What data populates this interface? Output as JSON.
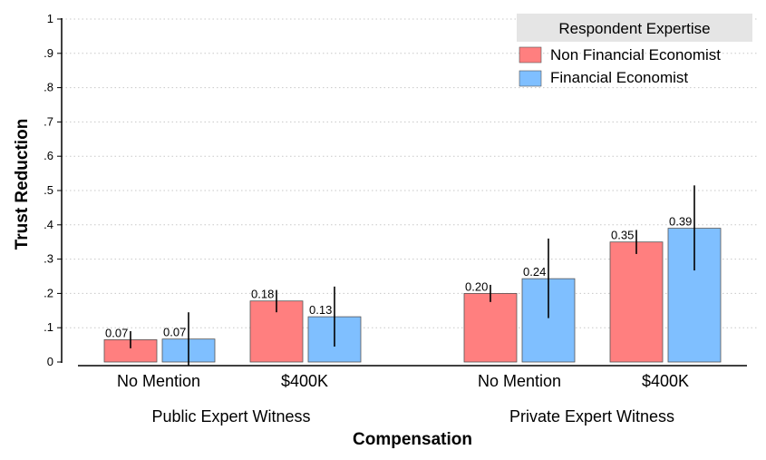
{
  "chart_data": {
    "type": "bar",
    "xlabel": "Compensation",
    "ylabel": "Trust Reduction",
    "ylim": [
      0,
      1
    ],
    "yticks": [
      0,
      0.1,
      0.2,
      0.3,
      0.4,
      0.5,
      0.6,
      0.7,
      0.8,
      0.9,
      1
    ],
    "ytick_labels": [
      "0",
      ".1",
      ".2",
      ".3",
      ".4",
      ".5",
      ".6",
      ".7",
      ".8",
      ".9",
      "1"
    ],
    "grid": true,
    "legend": {
      "title": "Respondent Expertise",
      "placement": "top-right"
    },
    "groups": [
      {
        "label": "Public Expert Witness",
        "categories": [
          "No Mention",
          "$400K"
        ]
      },
      {
        "label": "Private Expert Witness",
        "categories": [
          "No Mention",
          "$400K"
        ]
      }
    ],
    "series": [
      {
        "name": "Non Financial Economist",
        "color": "#ff7f7f",
        "values": [
          0.065,
          0.178,
          0.2,
          0.35
        ],
        "labels": [
          "0.07",
          "0.18",
          "0.20",
          "0.35"
        ],
        "ci_low": [
          0.04,
          0.145,
          0.175,
          0.315
        ],
        "ci_high": [
          0.09,
          0.21,
          0.225,
          0.385
        ]
      },
      {
        "name": "Financial Economist",
        "color": "#7fbfff",
        "values": [
          0.067,
          0.132,
          0.243,
          0.39
        ],
        "labels": [
          "0.07",
          "0.13",
          "0.24",
          "0.39"
        ],
        "ci_low": [
          -0.01,
          0.045,
          0.128,
          0.267
        ],
        "ci_high": [
          0.145,
          0.22,
          0.36,
          0.515
        ]
      }
    ]
  }
}
